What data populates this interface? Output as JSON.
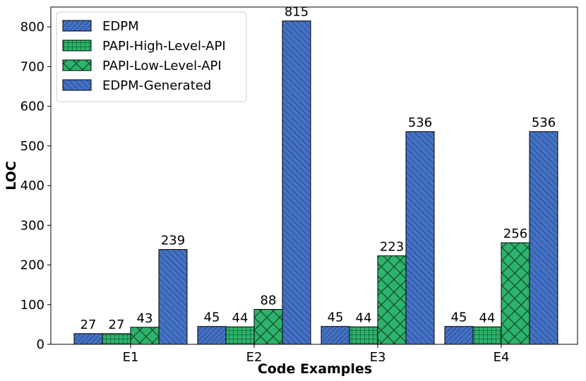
{
  "chart_data": {
    "type": "bar",
    "title": "",
    "xlabel": "Code Examples",
    "ylabel": "LOC",
    "categories": [
      "E1",
      "E2",
      "E3",
      "E4"
    ],
    "ylim": [
      0,
      850
    ],
    "yticks": [
      0,
      100,
      200,
      300,
      400,
      500,
      600,
      700,
      800
    ],
    "grid": false,
    "legend_position": "top-left",
    "series": [
      {
        "name": "EDPM",
        "values": [
          27,
          45,
          45,
          45
        ],
        "color": "#4472c4",
        "pattern": "diagonal-dense"
      },
      {
        "name": "PAPI-High-Level-API",
        "values": [
          27,
          44,
          44,
          44
        ],
        "color": "#2db36b",
        "pattern": "grid"
      },
      {
        "name": "PAPI-Low-Level-API",
        "values": [
          43,
          88,
          223,
          256
        ],
        "color": "#2db36b",
        "pattern": "crosshatch"
      },
      {
        "name": "EDPM-Generated",
        "values": [
          239,
          815,
          536,
          536
        ],
        "color": "#4472c4",
        "pattern": "diagonal"
      }
    ]
  }
}
